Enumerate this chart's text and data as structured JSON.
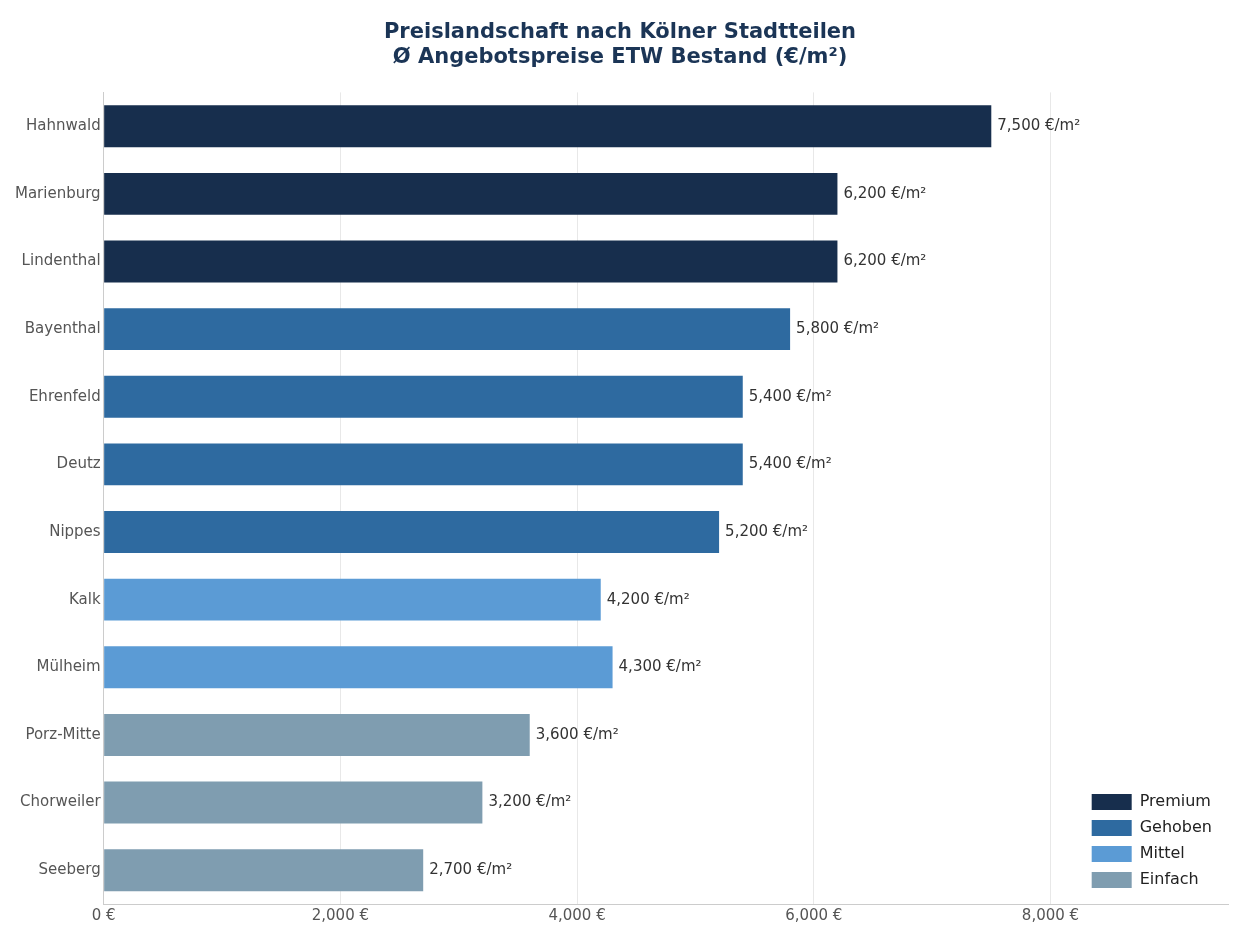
{
  "chart_data": {
    "type": "bar",
    "orientation": "horizontal",
    "title": "Preislandschaft nach Kölner Stadtteilen\nØ Angebotspreise ETW Bestand (€/m²)",
    "categories": [
      "Hahnwald",
      "Marienburg",
      "Lindenthal",
      "Bayenthal",
      "Ehrenfeld",
      "Deutz",
      "Nippes",
      "Kalk",
      "Mülheim",
      "Porz-Mitte",
      "Chorweiler",
      "Seeberg"
    ],
    "series": [
      {
        "name": "Premium",
        "color": "#172e4d",
        "values": [
          7500,
          6200,
          6200,
          null,
          null,
          null,
          null,
          null,
          null,
          null,
          null,
          null
        ],
        "value_labels": [
          "7,500 €/m²",
          "6,200 €/m²",
          "6,200 €/m²",
          null,
          null,
          null,
          null,
          null,
          null,
          null,
          null,
          null
        ]
      },
      {
        "name": "Gehoben",
        "color": "#2e6aa0",
        "values": [
          null,
          null,
          null,
          5800,
          5400,
          5400,
          5200,
          null,
          null,
          null,
          null,
          null
        ],
        "value_labels": [
          null,
          null,
          null,
          "5,800 €/m²",
          "5,400 €/m²",
          "5,400 €/m²",
          "5,200 €/m²",
          null,
          null,
          null,
          null,
          null
        ]
      },
      {
        "name": "Mittel",
        "color": "#5b9bd5",
        "values": [
          null,
          null,
          null,
          null,
          null,
          null,
          null,
          4200,
          4300,
          null,
          null,
          null
        ],
        "value_labels": [
          null,
          null,
          null,
          null,
          null,
          null,
          null,
          "4,200 €/m²",
          "4,300 €/m²",
          null,
          null,
          null
        ]
      },
      {
        "name": "Einfach",
        "color": "#7f9db0",
        "values": [
          null,
          null,
          null,
          null,
          null,
          null,
          null,
          null,
          null,
          3600,
          3200,
          2700
        ],
        "value_labels": [
          null,
          null,
          null,
          null,
          null,
          null,
          null,
          null,
          null,
          "3,600 €/m²",
          "3,200 €/m²",
          "2,700 €/m²"
        ]
      }
    ],
    "xlim": [
      0,
      9500
    ],
    "xticks": [
      {
        "value": 0,
        "label": "0 €"
      },
      {
        "value": 2000,
        "label": "2,000 €"
      },
      {
        "value": 4000,
        "label": "4,000 €"
      },
      {
        "value": 6000,
        "label": "6,000 €"
      },
      {
        "value": 8000,
        "label": "8,000 €"
      }
    ],
    "grid": "x",
    "legend": "bottom right"
  }
}
